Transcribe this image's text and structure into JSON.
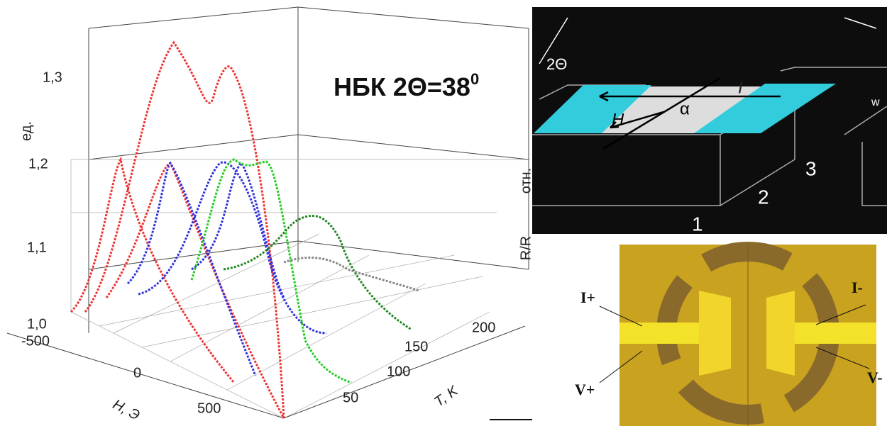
{
  "plot": {
    "title": "НБК 2Θ=38",
    "title_sup": "0",
    "y_label_left": "ед.",
    "y_label_right": "R/R",
    "y_label_right2": "отн.",
    "y_ticks": [
      "1,3",
      "1,2",
      "1,1",
      "1,0"
    ],
    "x_label": "H, Э",
    "x_ticks": [
      "-500",
      "0",
      "500"
    ],
    "t_label": "T, K",
    "t_ticks": [
      "50",
      "100",
      "150",
      "200"
    ]
  },
  "schematic": {
    "angle_label": "2Θ",
    "current_label": "I",
    "field_label": "H",
    "alpha_label": "α",
    "part_labels": [
      "1",
      "2",
      "3"
    ],
    "width_label": "w"
  },
  "photo": {
    "labels": [
      "I+",
      "V+",
      "I-",
      "V-"
    ]
  }
}
